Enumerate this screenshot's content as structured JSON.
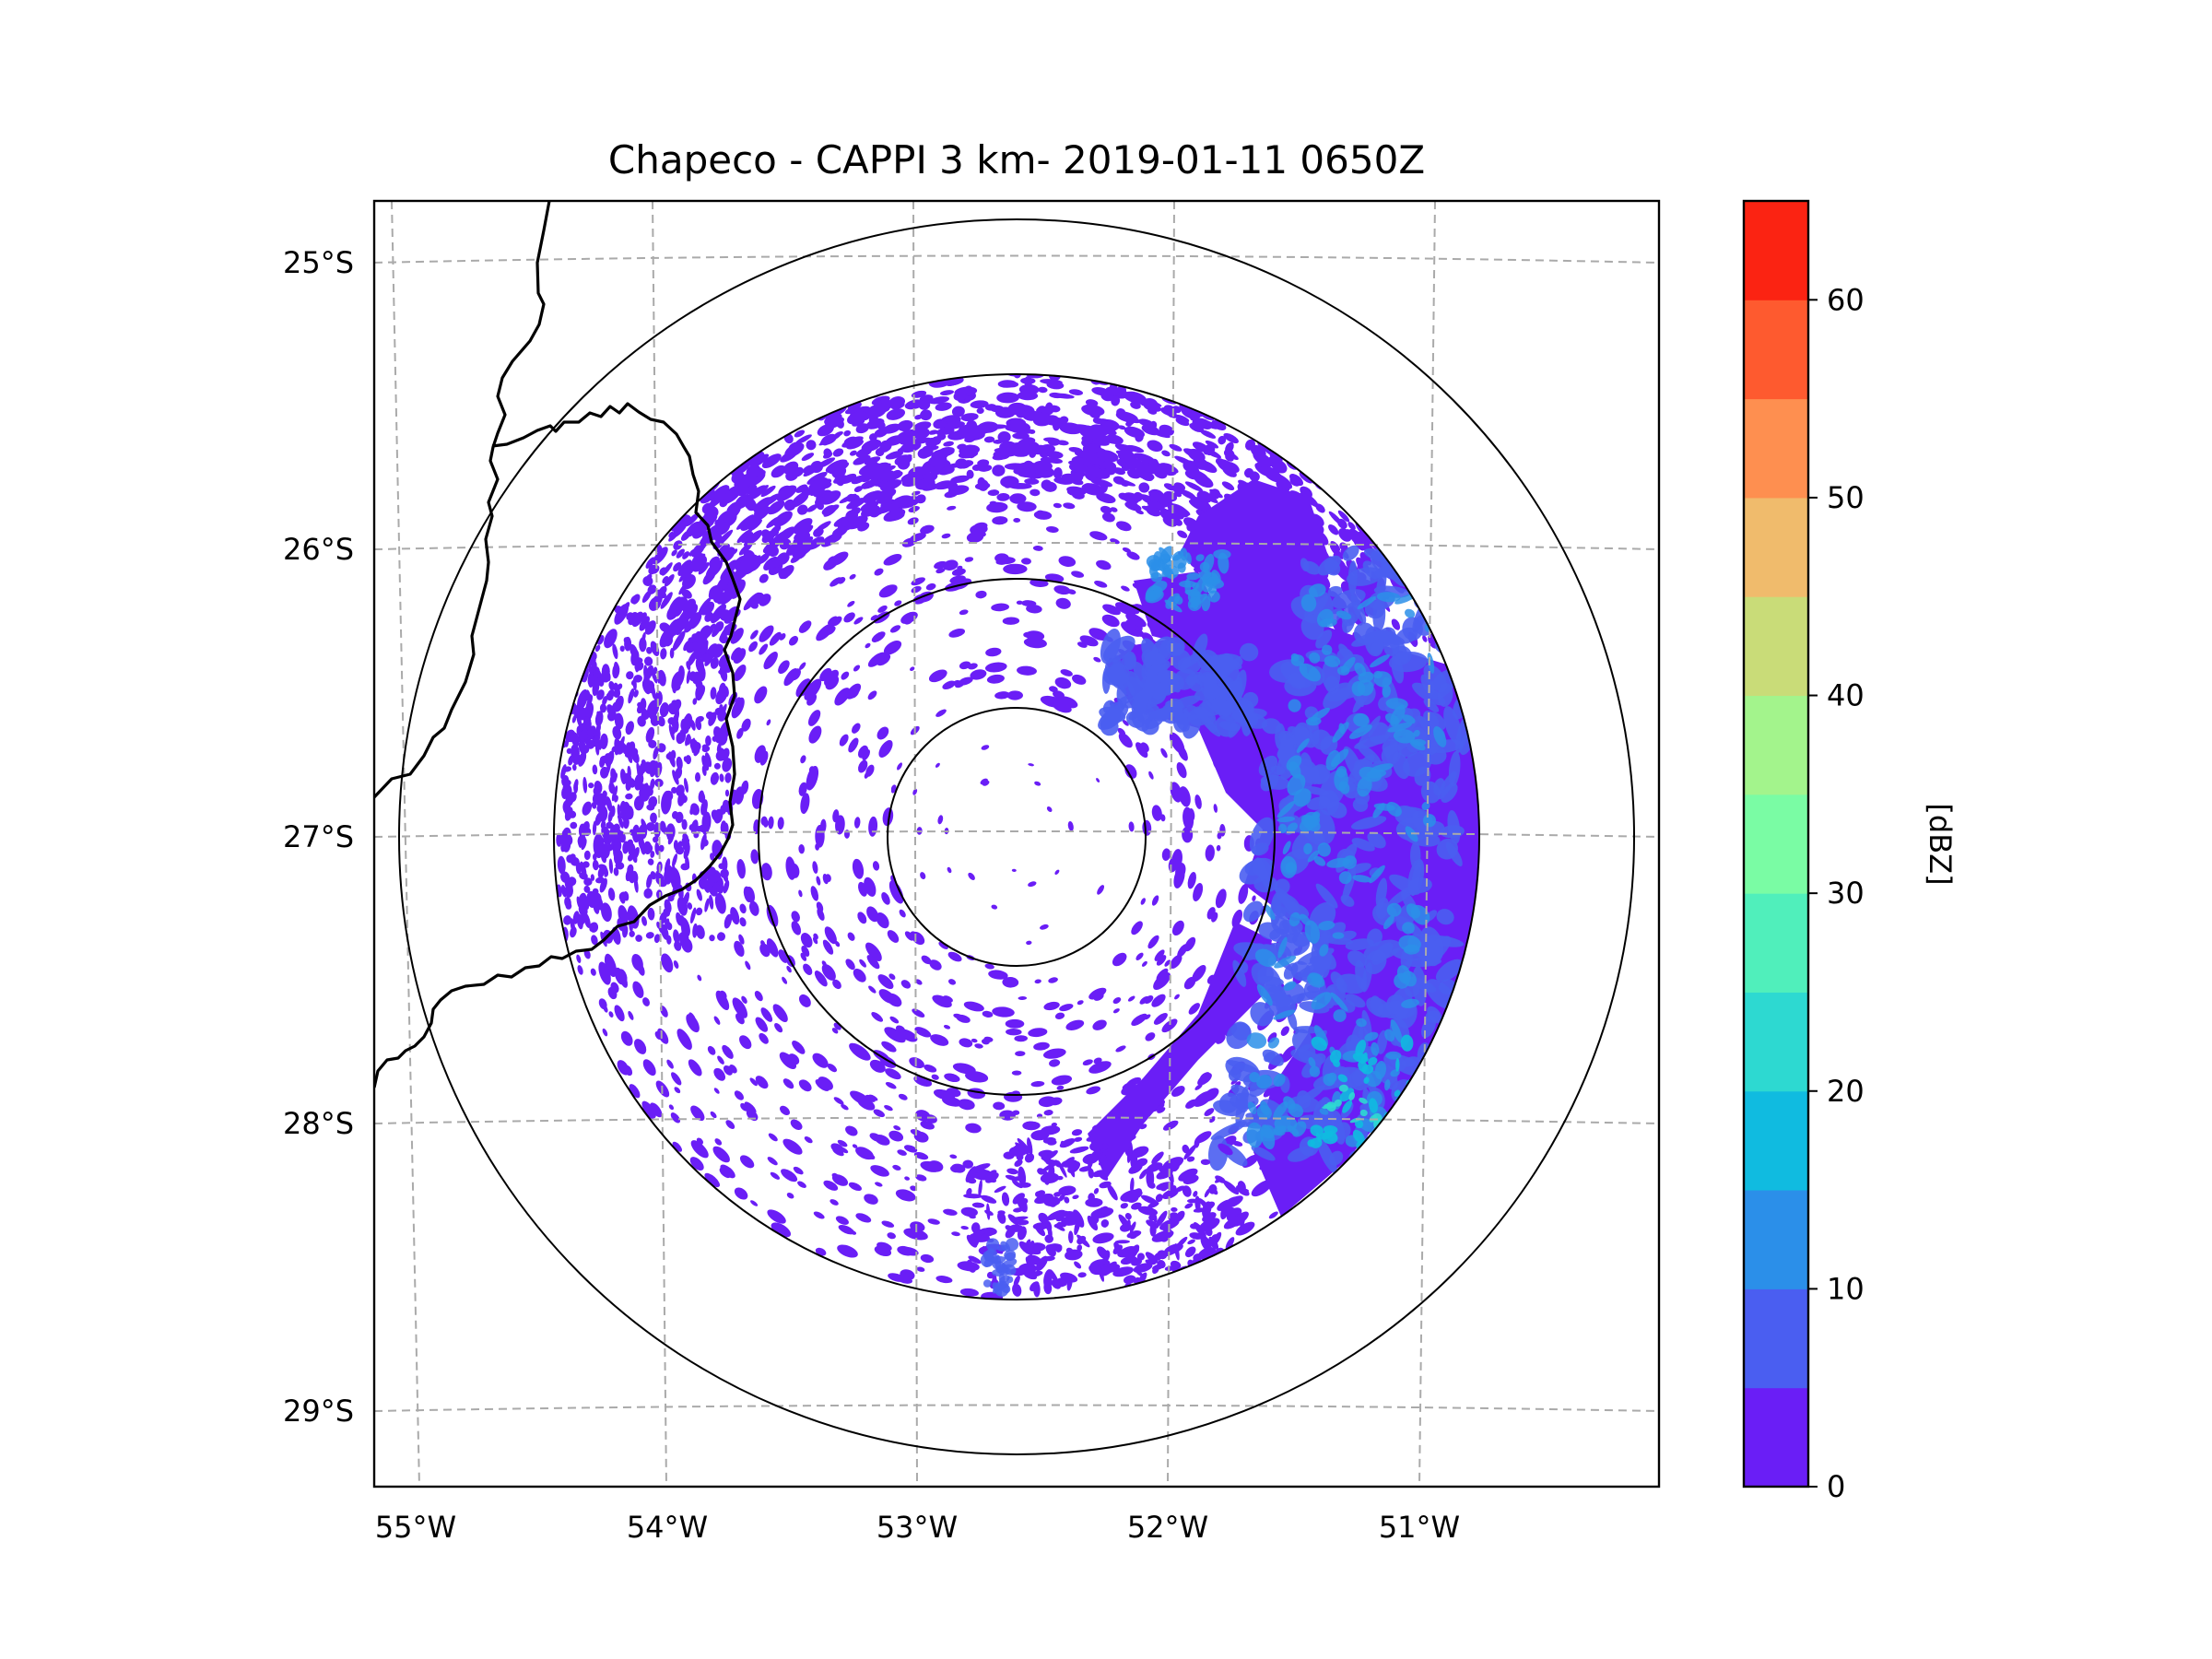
{
  "figure": {
    "title": "Chapeco - CAPPI 3 km- 2019-01-11 0650Z"
  },
  "map": {
    "lon_ticks": [
      "55°W",
      "54°W",
      "53°W",
      "52°W",
      "51°W"
    ],
    "lat_ticks": [
      "25°S",
      "26°S",
      "27°S",
      "28°S",
      "29°S"
    ],
    "radar_site": {
      "lat": -27.04,
      "lon": -52.6
    },
    "range_rings_deg": [
      0.45,
      0.9,
      1.62,
      2.16
    ]
  },
  "colorbar": {
    "label": "[dBZ]",
    "ticks": [
      "0",
      "10",
      "20",
      "30",
      "40",
      "50",
      "60"
    ],
    "vmin": 0,
    "vmax": 65,
    "levels": [
      0,
      5,
      10,
      15,
      20,
      25,
      30,
      35,
      40,
      45,
      50,
      55,
      60,
      65
    ],
    "colors": [
      "#6a1ef6",
      "#4a5ef1",
      "#2b8fe9",
      "#10bbe0",
      "#2dd9d1",
      "#50efbb",
      "#7afca4",
      "#a3f48c",
      "#c9dc78",
      "#f0bb6c",
      "#fe8f50",
      "#fe5a2f",
      "#fb2312"
    ]
  },
  "echo_colors": {
    "weak": "#6a1ef6",
    "light": "#4a5ef1",
    "moderate": "#2b8fe9",
    "strong": "#10bbe0",
    "cell": "#2dd9d1"
  }
}
